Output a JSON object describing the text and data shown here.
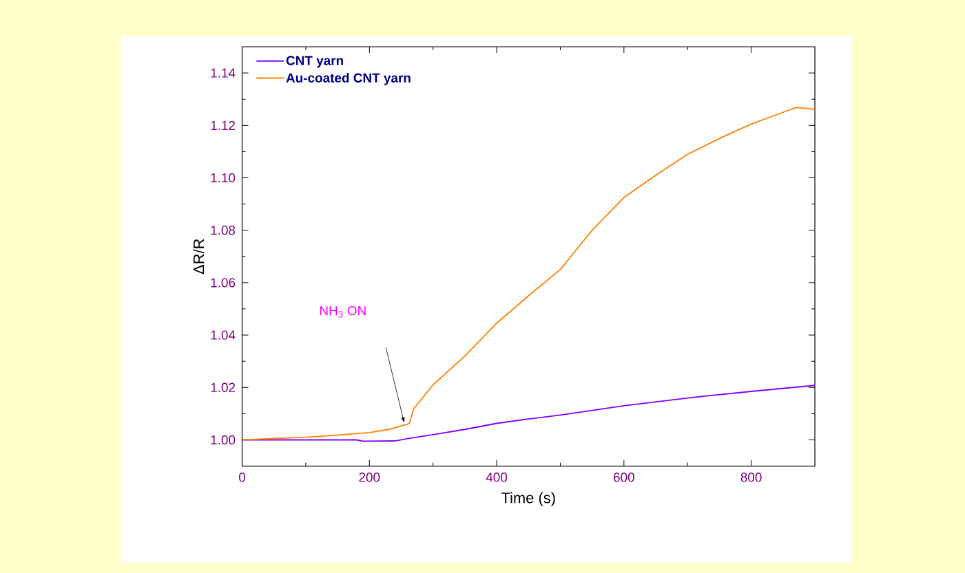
{
  "chart_data": {
    "type": "line",
    "xlabel": "Time (s)",
    "ylabel": "ΔR/R",
    "xlim": [
      0,
      900
    ],
    "ylim": [
      0.99,
      1.15
    ],
    "xticks": [
      0,
      200,
      400,
      600,
      800
    ],
    "yticks": [
      {
        "value": 1.0,
        "label": "1.00"
      },
      {
        "value": 1.02,
        "label": "1.02"
      },
      {
        "value": 1.04,
        "label": "1.04"
      },
      {
        "value": 1.06,
        "label": "1.06"
      },
      {
        "value": 1.08,
        "label": "1.08"
      },
      {
        "value": 1.1,
        "label": "1.10"
      },
      {
        "value": 1.12,
        "label": "1.12"
      },
      {
        "value": 1.14,
        "label": "1.14"
      }
    ],
    "legend": "top left",
    "grid": false,
    "marker": "none",
    "line_style": "solid",
    "annotations": [
      "NH$_{3}$ ON"
    ],
    "series": [
      {
        "name": "CNT yarn",
        "color": "#8000ff",
        "x": [
          0,
          100,
          180,
          190,
          240,
          260,
          300,
          350,
          400,
          450,
          500,
          600,
          700,
          800,
          900
        ],
        "values": [
          1.0,
          1.0,
          1.0,
          0.9995,
          0.9996,
          1.0005,
          1.002,
          1.004,
          1.0063,
          1.008,
          1.0095,
          1.013,
          1.016,
          1.0185,
          1.0208
        ]
      },
      {
        "name": "Au-coated CNT yarn",
        "color": "#ff8000",
        "x": [
          0,
          50,
          100,
          150,
          200,
          230,
          260,
          263,
          270,
          300,
          350,
          400,
          450,
          500,
          550,
          600,
          650,
          700,
          750,
          800,
          850,
          870,
          890,
          900
        ],
        "values": [
          1.0,
          1.0005,
          1.001,
          1.0018,
          1.0028,
          1.004,
          1.006,
          1.0065,
          1.012,
          1.021,
          1.032,
          1.0445,
          1.055,
          1.065,
          1.08,
          1.0925,
          1.101,
          1.109,
          1.115,
          1.1205,
          1.125,
          1.1268,
          1.1265,
          1.126
        ]
      }
    ]
  }
}
